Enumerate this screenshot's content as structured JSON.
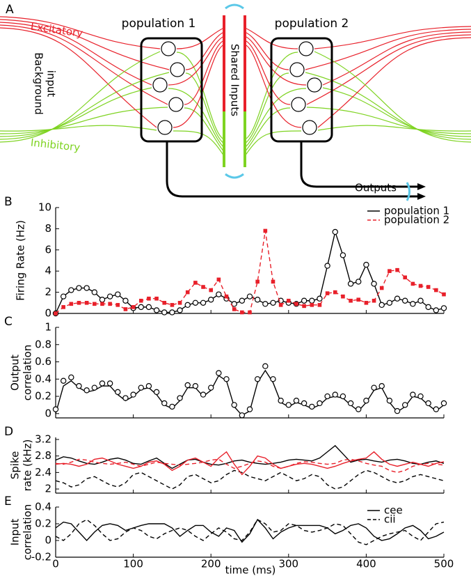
{
  "diagram": {
    "label": "A",
    "excitatory": "Excitatory",
    "inhibitory": "Inhibitory",
    "background": [
      "Background",
      "input"
    ],
    "population1": "population 1",
    "population2": "population 2",
    "shared": "Shared Inputs",
    "outputs": "Outputs"
  },
  "chart_data": [
    {
      "type": "line",
      "label": "B",
      "ylabel": [
        "Firing Rate (Hz)"
      ],
      "ylim": [
        0,
        10
      ],
      "yticks": [
        0,
        2,
        4,
        6,
        8,
        10
      ],
      "xlim": [
        0,
        500
      ],
      "xticks": [
        0,
        100,
        200,
        300,
        400,
        500
      ],
      "legend": "upper right",
      "x": [
        0,
        10,
        20,
        30,
        40,
        50,
        60,
        70,
        80,
        90,
        100,
        110,
        120,
        130,
        140,
        150,
        160,
        170,
        180,
        190,
        200,
        210,
        220,
        230,
        240,
        250,
        260,
        270,
        280,
        290,
        300,
        310,
        320,
        330,
        340,
        350,
        360,
        370,
        380,
        390,
        400,
        410,
        420,
        430,
        440,
        450,
        460,
        470,
        480,
        490,
        500
      ],
      "series": [
        {
          "name": "population 1",
          "color": "#000000",
          "style": "solid",
          "marker": "circle",
          "values": [
            0,
            1.6,
            2.2,
            2.4,
            2.4,
            2.0,
            1.3,
            1.6,
            1.8,
            1.2,
            0.5,
            0.6,
            0.6,
            0.3,
            0.1,
            0.1,
            0.3,
            0.8,
            1.0,
            1.0,
            1.3,
            1.8,
            1.4,
            0.9,
            1.2,
            1.6,
            1.3,
            0.9,
            1.0,
            1.2,
            1.0,
            0.9,
            1.2,
            1.2,
            1.4,
            4.5,
            7.7,
            5.5,
            2.8,
            3.0,
            4.6,
            2.8,
            0.8,
            1.0,
            1.4,
            1.2,
            0.9,
            1.2,
            0.6,
            0.3,
            0.5
          ]
        },
        {
          "name": "population 2",
          "color": "#e8202a",
          "style": "dashed",
          "marker": "square",
          "values": [
            0,
            0.6,
            0.9,
            1.0,
            1.0,
            0.9,
            0.9,
            0.9,
            0.8,
            0.4,
            0.6,
            1.2,
            1.4,
            1.4,
            1.0,
            0.8,
            1.0,
            2.0,
            2.9,
            2.5,
            2.2,
            3.2,
            1.6,
            0.4,
            0.1,
            0.1,
            3.0,
            7.8,
            3.0,
            0.8,
            1.2,
            0.9,
            0.7,
            0.8,
            0.8,
            1.9,
            2.0,
            1.6,
            1.2,
            1.3,
            1.0,
            1.2,
            2.4,
            4.0,
            4.1,
            3.4,
            2.8,
            2.6,
            2.5,
            2.2,
            1.8
          ]
        }
      ]
    },
    {
      "type": "line",
      "label": "C",
      "ylabel": [
        "Output",
        "correlation"
      ],
      "ylim": [
        -0.05,
        1
      ],
      "yticks": [
        0,
        0.2,
        0.4,
        0.6,
        0.8,
        1
      ],
      "xlim": [
        0,
        500
      ],
      "xticks": [
        0,
        100,
        200,
        300,
        400,
        500
      ],
      "x": [
        0,
        10,
        20,
        30,
        40,
        50,
        60,
        70,
        80,
        90,
        100,
        110,
        120,
        130,
        140,
        150,
        160,
        170,
        180,
        190,
        200,
        210,
        220,
        230,
        240,
        250,
        260,
        270,
        280,
        290,
        300,
        310,
        320,
        330,
        340,
        350,
        360,
        370,
        380,
        390,
        400,
        410,
        420,
        430,
        440,
        450,
        460,
        470,
        480,
        490,
        500
      ],
      "series": [
        {
          "color": "#000000",
          "style": "solid",
          "marker": "none",
          "values": [
            0,
            0.32,
            0.38,
            0.3,
            0.25,
            0.27,
            0.32,
            0.32,
            0.22,
            0.15,
            0.2,
            0.28,
            0.3,
            0.22,
            0.1,
            0.06,
            0.15,
            0.3,
            0.3,
            0.2,
            0.27,
            0.44,
            0.38,
            0.08,
            -0.02,
            0.03,
            0.36,
            0.5,
            0.36,
            0.13,
            0.08,
            0.13,
            0.1,
            0.06,
            0.1,
            0.18,
            0.2,
            0.18,
            0.1,
            0.03,
            0.13,
            0.27,
            0.3,
            0.13,
            0.02,
            0.08,
            0.2,
            0.18,
            0.1,
            0.03,
            0.1
          ]
        },
        {
          "color": "#000000",
          "style": "none",
          "marker": "circle",
          "values": [
            0.05,
            0.38,
            0.42,
            0.32,
            0.27,
            0.3,
            0.35,
            0.35,
            0.25,
            0.18,
            0.22,
            0.3,
            0.32,
            0.25,
            0.12,
            0.08,
            0.18,
            0.33,
            0.32,
            0.22,
            0.3,
            0.47,
            0.4,
            0.1,
            -0.02,
            0.05,
            0.4,
            0.55,
            0.4,
            0.15,
            0.1,
            0.15,
            0.12,
            0.08,
            0.12,
            0.2,
            0.22,
            0.2,
            0.12,
            0.05,
            0.15,
            0.3,
            0.32,
            0.15,
            0.03,
            0.1,
            0.22,
            0.2,
            0.12,
            0.05,
            0.12
          ]
        }
      ]
    },
    {
      "type": "line",
      "label": "D",
      "ylabel": [
        "Spike",
        "rate (kHz)"
      ],
      "ylim": [
        1.9,
        3.25
      ],
      "yticks": [
        2,
        2.4,
        2.8,
        3.2
      ],
      "xlim": [
        0,
        500
      ],
      "xticks": [
        0,
        100,
        200,
        300,
        400,
        500
      ],
      "x": [
        0,
        10,
        20,
        30,
        40,
        50,
        60,
        70,
        80,
        90,
        100,
        110,
        120,
        130,
        140,
        150,
        160,
        170,
        180,
        190,
        200,
        210,
        220,
        230,
        240,
        250,
        260,
        270,
        280,
        290,
        300,
        310,
        320,
        330,
        340,
        350,
        360,
        370,
        380,
        390,
        400,
        410,
        420,
        430,
        440,
        450,
        460,
        470,
        480,
        490,
        500
      ],
      "series": [
        {
          "color": "#000000",
          "style": "solid",
          "marker": "none",
          "values": [
            2.7,
            2.78,
            2.75,
            2.68,
            2.62,
            2.6,
            2.65,
            2.72,
            2.75,
            2.7,
            2.62,
            2.6,
            2.68,
            2.75,
            2.62,
            2.5,
            2.6,
            2.7,
            2.72,
            2.65,
            2.6,
            2.58,
            2.62,
            2.68,
            2.7,
            2.65,
            2.62,
            2.6,
            2.62,
            2.65,
            2.7,
            2.72,
            2.7,
            2.68,
            2.75,
            2.9,
            3.05,
            2.85,
            2.65,
            2.7,
            2.72,
            2.68,
            2.65,
            2.7,
            2.72,
            2.68,
            2.62,
            2.6,
            2.65,
            2.68,
            2.62
          ]
        },
        {
          "color": "#000000",
          "style": "dashed",
          "marker": "none",
          "values": [
            2.2,
            2.15,
            2.05,
            2.1,
            2.25,
            2.3,
            2.2,
            2.1,
            2.05,
            2.15,
            2.35,
            2.4,
            2.3,
            2.2,
            2.1,
            2.0,
            2.1,
            2.3,
            2.35,
            2.25,
            2.15,
            2.2,
            2.35,
            2.45,
            2.4,
            2.3,
            2.25,
            2.2,
            2.3,
            2.4,
            2.3,
            2.2,
            2.25,
            2.35,
            2.3,
            2.1,
            2.0,
            2.05,
            2.2,
            2.35,
            2.45,
            2.4,
            2.3,
            2.2,
            2.15,
            2.2,
            2.3,
            2.35,
            2.3,
            2.25,
            2.2
          ]
        },
        {
          "color": "#e8202a",
          "style": "solid",
          "marker": "none",
          "values": [
            2.6,
            2.62,
            2.6,
            2.55,
            2.6,
            2.72,
            2.75,
            2.68,
            2.6,
            2.55,
            2.5,
            2.55,
            2.65,
            2.68,
            2.6,
            2.45,
            2.55,
            2.7,
            2.75,
            2.65,
            2.55,
            2.75,
            2.9,
            2.6,
            2.35,
            2.55,
            2.8,
            2.75,
            2.6,
            2.5,
            2.55,
            2.6,
            2.62,
            2.6,
            2.55,
            2.5,
            2.55,
            2.62,
            2.68,
            2.72,
            2.75,
            2.9,
            2.72,
            2.6,
            2.55,
            2.6,
            2.65,
            2.6,
            2.55,
            2.62,
            2.66
          ]
        },
        {
          "color": "#e8202a",
          "style": "dashed",
          "marker": "none",
          "values": [
            2.62,
            2.6,
            2.65,
            2.72,
            2.7,
            2.65,
            2.62,
            2.6,
            2.62,
            2.65,
            2.6,
            2.55,
            2.6,
            2.65,
            2.62,
            2.6,
            2.58,
            2.6,
            2.62,
            2.65,
            2.7,
            2.72,
            2.6,
            2.5,
            2.55,
            2.62,
            2.68,
            2.65,
            2.55,
            2.5,
            2.55,
            2.62,
            2.66,
            2.65,
            2.62,
            2.6,
            2.62,
            2.7,
            2.72,
            2.68,
            2.62,
            2.58,
            2.55,
            2.45,
            2.4,
            2.45,
            2.55,
            2.6,
            2.62,
            2.6,
            2.58
          ]
        }
      ]
    },
    {
      "type": "line",
      "label": "E",
      "ylabel": [
        "Input",
        "correlation"
      ],
      "xlabel": "time (ms)",
      "ylim": [
        -0.2,
        0.4
      ],
      "yticks": [
        -0.2,
        0,
        0.2,
        0.4
      ],
      "xlim": [
        0,
        500
      ],
      "xticks": [
        0,
        100,
        200,
        300,
        400,
        500
      ],
      "legend": "upper right",
      "x": [
        0,
        10,
        20,
        30,
        40,
        50,
        60,
        70,
        80,
        90,
        100,
        110,
        120,
        130,
        140,
        150,
        160,
        170,
        180,
        190,
        200,
        210,
        220,
        230,
        240,
        250,
        260,
        270,
        280,
        290,
        300,
        310,
        320,
        330,
        340,
        350,
        360,
        370,
        380,
        390,
        400,
        410,
        420,
        430,
        440,
        450,
        460,
        470,
        480,
        490,
        500
      ],
      "series": [
        {
          "name": "cee",
          "color": "#000000",
          "style": "solid",
          "marker": "none",
          "values": [
            0.15,
            0.22,
            0.2,
            0.1,
            0.0,
            0.1,
            0.18,
            0.2,
            0.18,
            0.12,
            0.15,
            0.18,
            0.2,
            0.2,
            0.2,
            0.15,
            0.05,
            0.12,
            0.18,
            0.18,
            0.1,
            0.05,
            0.15,
            0.12,
            -0.02,
            0.08,
            0.25,
            0.15,
            0.02,
            0.1,
            0.15,
            0.18,
            0.18,
            0.18,
            0.18,
            0.15,
            0.08,
            0.12,
            0.18,
            0.2,
            0.15,
            0.05,
            0.0,
            0.02,
            0.08,
            0.15,
            0.18,
            0.12,
            0.02,
            0.05,
            0.1
          ]
        },
        {
          "name": "cii",
          "color": "#000000",
          "style": "dashed",
          "marker": "none",
          "values": [
            0.05,
            0.0,
            0.08,
            0.2,
            0.25,
            0.18,
            0.08,
            0.0,
            0.02,
            0.1,
            0.15,
            0.12,
            0.05,
            0.02,
            0.08,
            0.12,
            0.15,
            0.12,
            0.05,
            0.0,
            0.08,
            0.15,
            0.1,
            0.02,
            0.0,
            0.1,
            0.25,
            0.2,
            0.1,
            0.12,
            0.2,
            0.18,
            0.12,
            0.1,
            0.12,
            0.15,
            0.2,
            0.18,
            0.08,
            -0.02,
            -0.05,
            0.0,
            0.05,
            0.08,
            0.1,
            0.12,
            0.05,
            0.0,
            0.1,
            0.2,
            0.22
          ]
        }
      ]
    }
  ]
}
